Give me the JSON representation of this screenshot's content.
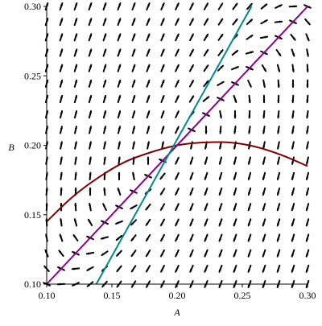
{
  "chart_data": {
    "type": "direction_field",
    "title": "",
    "xlabel": "A",
    "ylabel": "B",
    "xlim": [
      0.1,
      0.3
    ],
    "ylim": [
      0.1,
      0.3
    ],
    "xticks": [
      0.1,
      0.15,
      0.2,
      0.25,
      0.3
    ],
    "yticks": [
      0.1,
      0.15,
      0.2,
      0.25,
      0.3
    ],
    "xtick_labels": [
      "0.10",
      "0.15",
      "0.20",
      "0.25",
      "0.30"
    ],
    "ytick_labels": [
      "0.10",
      "0.15",
      "0.20",
      "0.25",
      "0.30"
    ],
    "grid": false,
    "equilibrium": {
      "A": 0.2,
      "B": 0.2
    },
    "field_grid": {
      "nx": 19,
      "ny": 19
    },
    "curves": [
      {
        "color": "#800000",
        "points": [
          [
            0.1,
            0.145
          ],
          [
            0.12,
            0.163
          ],
          [
            0.14,
            0.177
          ],
          [
            0.16,
            0.188
          ],
          [
            0.18,
            0.195
          ],
          [
            0.2,
            0.2
          ],
          [
            0.22,
            0.202
          ],
          [
            0.24,
            0.202
          ],
          [
            0.26,
            0.199
          ],
          [
            0.28,
            0.193
          ],
          [
            0.3,
            0.185
          ]
        ]
      },
      {
        "color": "#8b008b",
        "points": [
          [
            0.1,
            0.1
          ],
          [
            0.3,
            0.3
          ]
        ]
      },
      {
        "color": "#008b8b",
        "points": [
          [
            0.138,
            0.1
          ],
          [
            0.257,
            0.3
          ]
        ]
      }
    ],
    "arrow_color": "#000000"
  }
}
